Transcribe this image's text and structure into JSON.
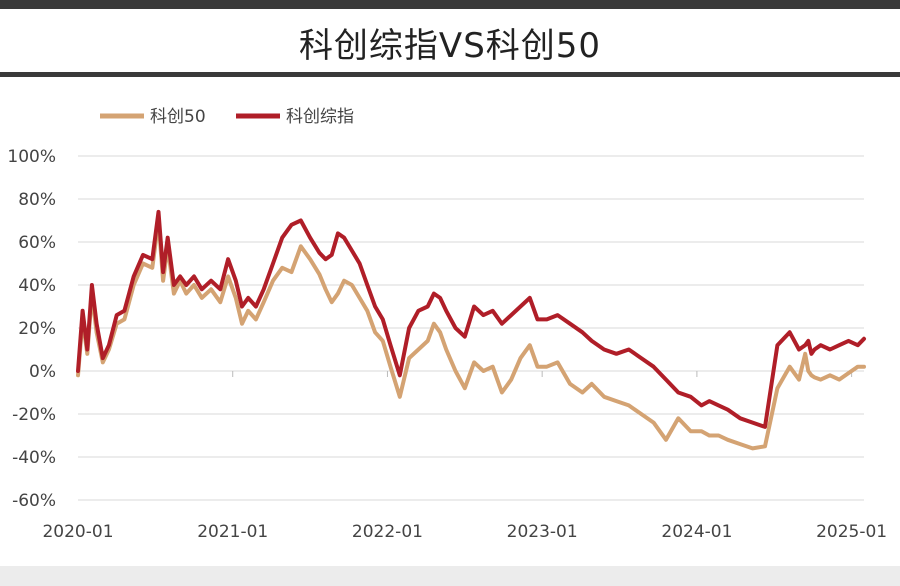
{
  "chart_data": {
    "type": "line",
    "title": "科创综指VS科创50",
    "xlabel": "",
    "ylabel": "",
    "x_ticks": [
      "2020-01",
      "2021-01",
      "2022-01",
      "2023-01",
      "2024-01",
      "2025-01"
    ],
    "x_range": [
      2020.0,
      2025.08
    ],
    "y_ticks": [
      "100%",
      "80%",
      "60%",
      "40%",
      "20%",
      "0%",
      "-20%",
      "-40%",
      "-60%"
    ],
    "ylim": [
      -60,
      100
    ],
    "grid": "horizontal",
    "legend_position": "top-left",
    "x": [
      2020.0,
      2020.03,
      2020.06,
      2020.09,
      2020.12,
      2020.16,
      2020.2,
      2020.25,
      2020.3,
      2020.36,
      2020.42,
      2020.48,
      2020.52,
      2020.55,
      2020.58,
      2020.62,
      2020.66,
      2020.7,
      2020.75,
      2020.8,
      2020.86,
      2020.92,
      2020.97,
      2021.02,
      2021.06,
      2021.1,
      2021.15,
      2021.2,
      2021.26,
      2021.32,
      2021.38,
      2021.44,
      2021.5,
      2021.56,
      2021.6,
      2021.64,
      2021.68,
      2021.72,
      2021.77,
      2021.82,
      2021.87,
      2021.92,
      2021.97,
      2022.02,
      2022.08,
      2022.14,
      2022.2,
      2022.26,
      2022.3,
      2022.34,
      2022.38,
      2022.44,
      2022.5,
      2022.56,
      2022.62,
      2022.68,
      2022.74,
      2022.8,
      2022.86,
      2022.92,
      2022.97,
      2023.03,
      2023.1,
      2023.18,
      2023.26,
      2023.32,
      2023.4,
      2023.48,
      2023.56,
      2023.64,
      2023.72,
      2023.8,
      2023.88,
      2023.96,
      2024.03,
      2024.08,
      2024.14,
      2024.2,
      2024.28,
      2024.36,
      2024.44,
      2024.52,
      2024.6,
      2024.66,
      2024.7,
      2024.72,
      2024.74,
      2024.76,
      2024.8,
      2024.86,
      2024.92,
      2024.98,
      2025.04,
      2025.08
    ],
    "series": [
      {
        "name": "科创50",
        "color": "#d4a373",
        "values": [
          -2,
          24,
          8,
          36,
          18,
          4,
          10,
          22,
          24,
          40,
          50,
          48,
          70,
          42,
          58,
          36,
          42,
          36,
          40,
          34,
          38,
          32,
          44,
          34,
          22,
          28,
          24,
          32,
          42,
          48,
          46,
          58,
          52,
          45,
          38,
          32,
          36,
          42,
          40,
          34,
          28,
          18,
          14,
          2,
          -12,
          6,
          10,
          14,
          22,
          18,
          10,
          0,
          -8,
          4,
          0,
          2,
          -10,
          -4,
          6,
          12,
          2,
          2,
          4,
          -6,
          -10,
          -6,
          -12,
          -14,
          -16,
          -20,
          -24,
          -32,
          -22,
          -28,
          -28,
          -30,
          -30,
          -32,
          -34,
          -36,
          -35,
          -8,
          2,
          -4,
          8,
          0,
          -2,
          -3,
          -4,
          -2,
          -4,
          -1,
          2,
          2
        ]
      },
      {
        "name": "科创综指",
        "color": "#b01e28",
        "values": [
          0,
          28,
          10,
          40,
          22,
          6,
          12,
          26,
          28,
          44,
          54,
          52,
          74,
          46,
          62,
          40,
          44,
          40,
          44,
          38,
          42,
          38,
          52,
          42,
          30,
          34,
          30,
          38,
          50,
          62,
          68,
          70,
          62,
          55,
          52,
          54,
          64,
          62,
          56,
          50,
          40,
          30,
          24,
          12,
          -2,
          20,
          28,
          30,
          36,
          34,
          28,
          20,
          16,
          30,
          26,
          28,
          22,
          26,
          30,
          34,
          24,
          24,
          26,
          22,
          18,
          14,
          10,
          8,
          10,
          6,
          2,
          -4,
          -10,
          -12,
          -16,
          -14,
          -16,
          -18,
          -22,
          -24,
          -26,
          12,
          18,
          10,
          12,
          14,
          8,
          10,
          12,
          10,
          12,
          14,
          12,
          15
        ]
      }
    ]
  }
}
